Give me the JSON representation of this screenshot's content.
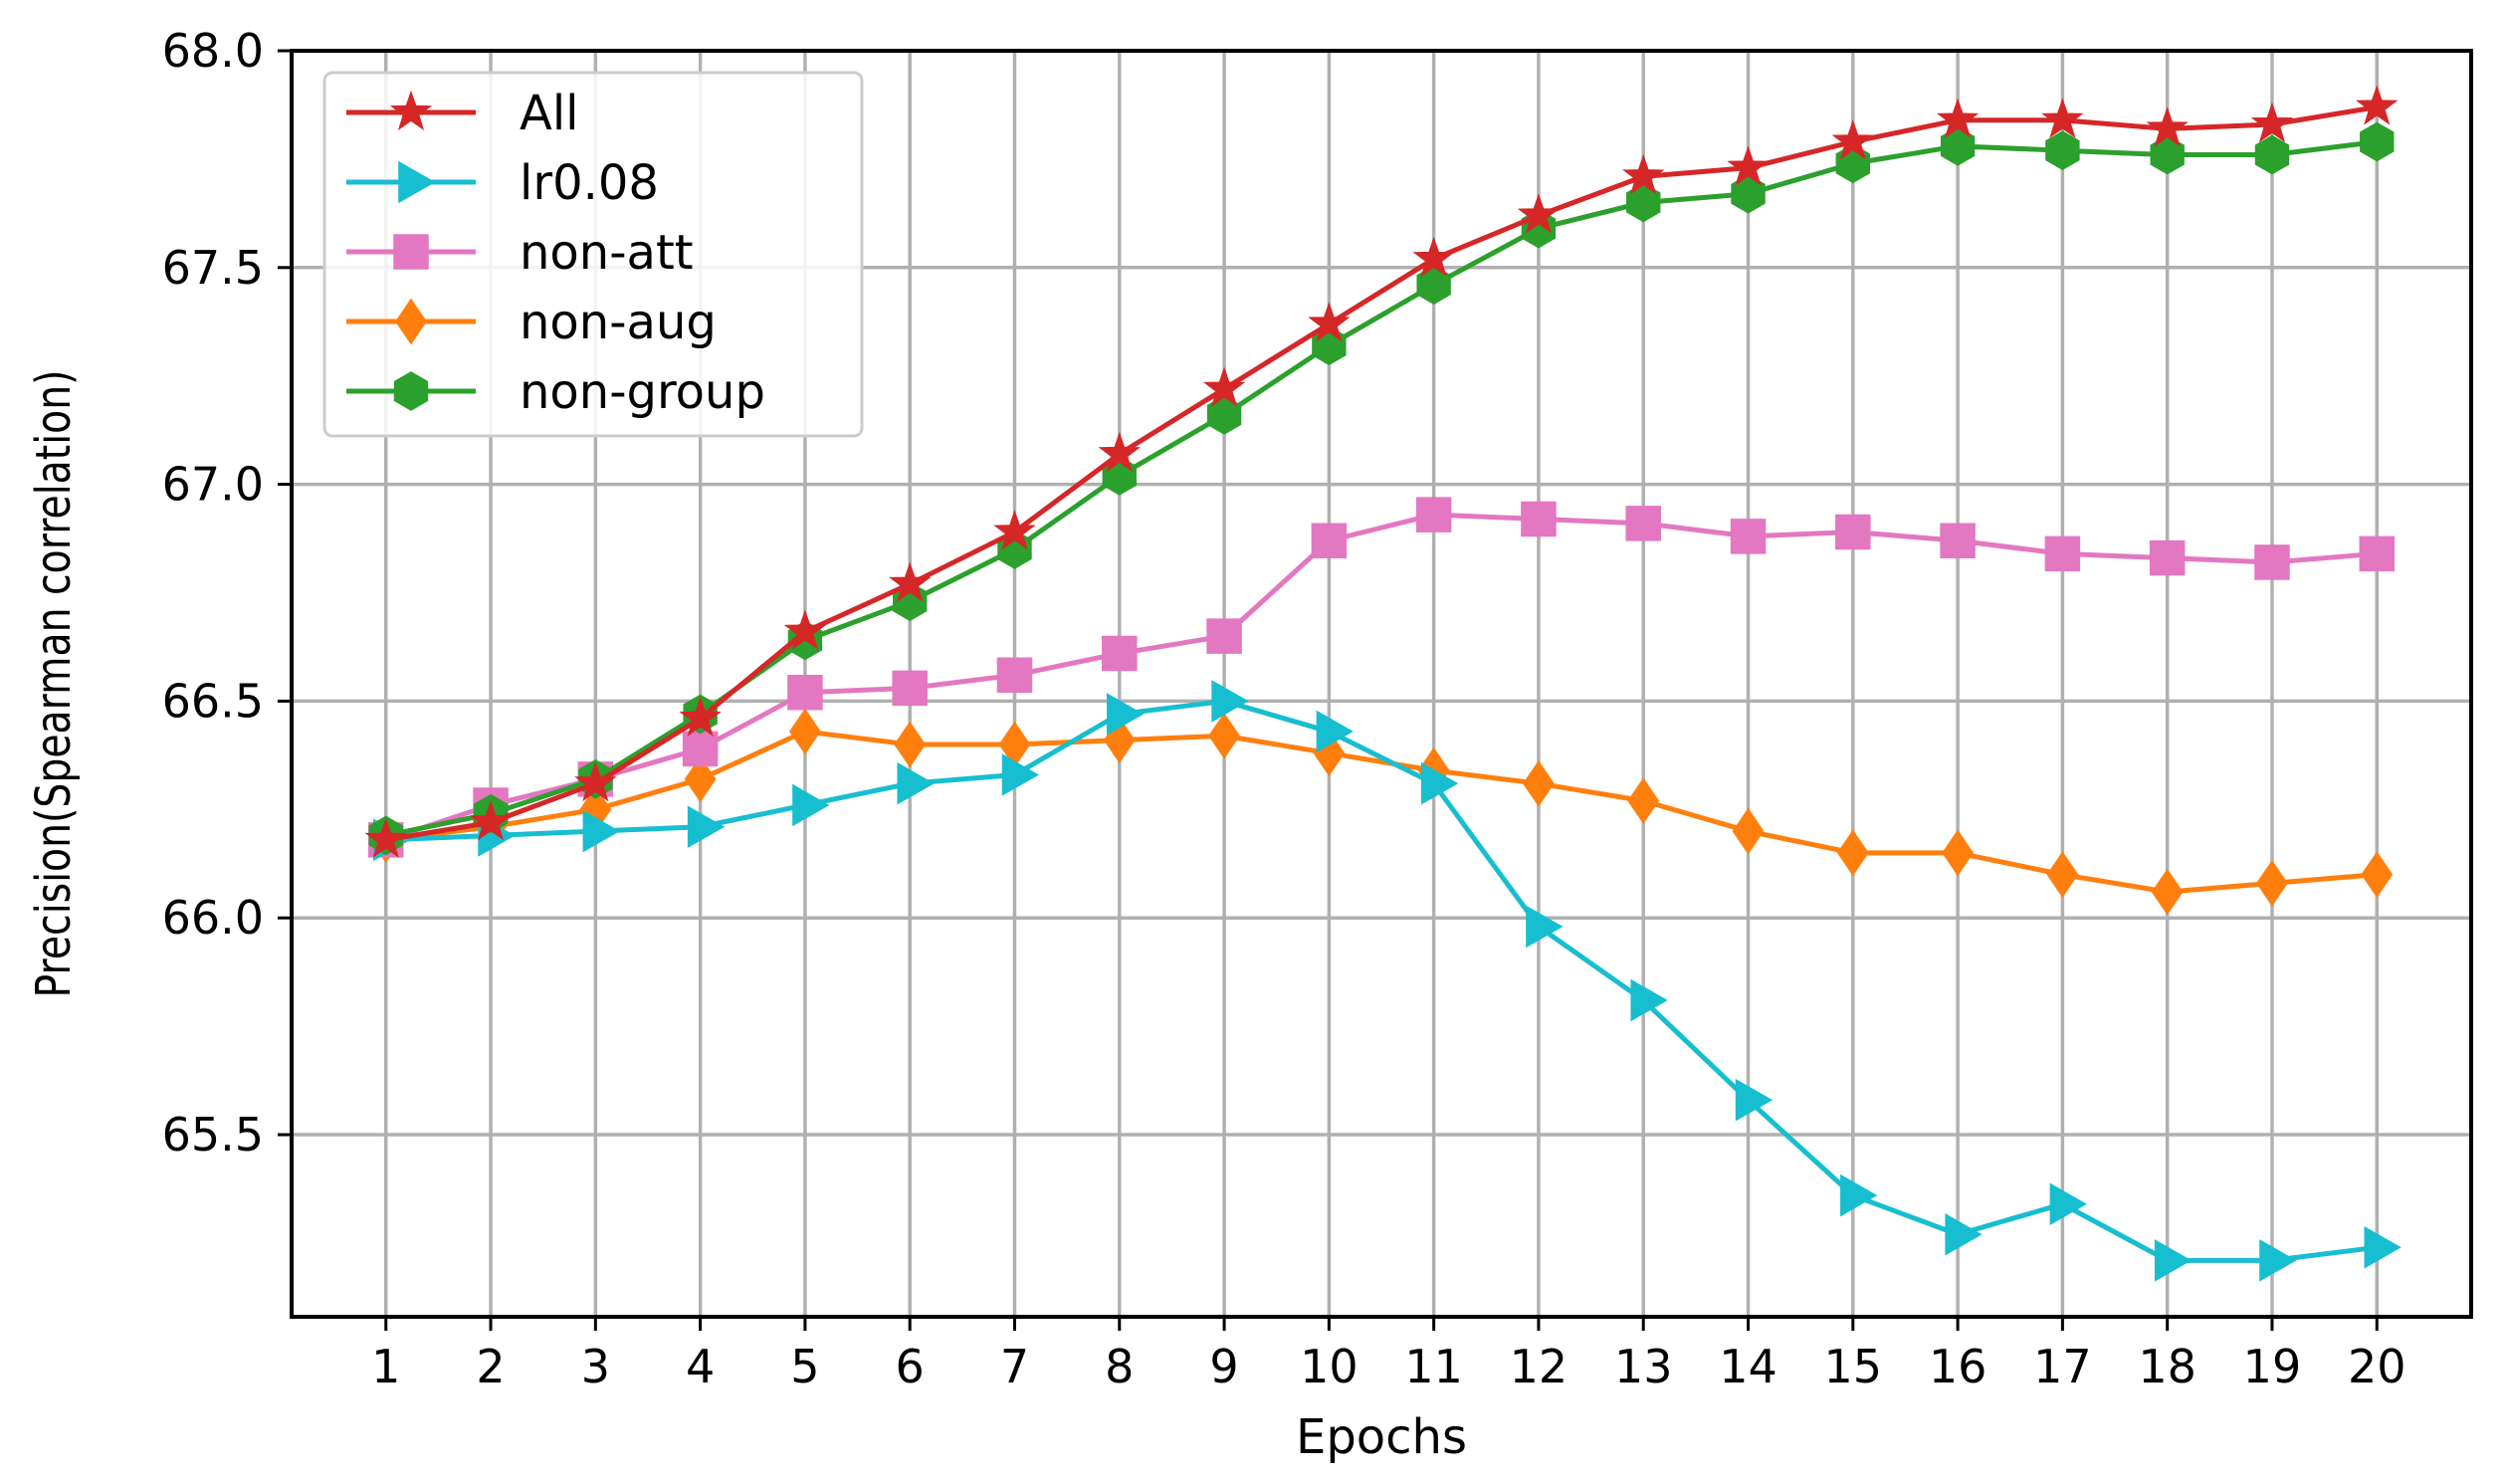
{
  "chart_data": {
    "type": "line",
    "xlabel": "Epochs",
    "ylabel": "Precision(Spearman correlation)",
    "x": [
      1,
      2,
      3,
      4,
      5,
      6,
      7,
      8,
      9,
      10,
      11,
      12,
      13,
      14,
      15,
      16,
      17,
      18,
      19,
      20
    ],
    "xticks": [
      "1",
      "2",
      "3",
      "4",
      "5",
      "6",
      "7",
      "8",
      "9",
      "10",
      "11",
      "12",
      "13",
      "14",
      "15",
      "16",
      "17",
      "18",
      "19",
      "20"
    ],
    "ylim": [
      65.08,
      68.0
    ],
    "yticks": [
      "65.5",
      "66.0",
      "66.5",
      "67.0",
      "67.5",
      "68.0"
    ],
    "ytick_values": [
      65.5,
      66.0,
      66.5,
      67.0,
      67.5,
      68.0
    ],
    "grid": true,
    "legend_position": "top-left",
    "series": [
      {
        "name": "All",
        "color": "#d62728",
        "marker": "star",
        "values": [
          66.18,
          66.22,
          66.31,
          66.46,
          66.66,
          66.77,
          66.89,
          67.07,
          67.22,
          67.37,
          67.52,
          67.62,
          67.71,
          67.73,
          67.79,
          67.84,
          67.84,
          67.82,
          67.83,
          67.87
        ]
      },
      {
        "name": "lr0.08",
        "color": "#17becf",
        "marker": "triangle-right",
        "values": [
          66.18,
          66.19,
          66.2,
          66.21,
          66.26,
          66.31,
          66.33,
          66.47,
          66.5,
          66.43,
          66.31,
          65.98,
          65.81,
          65.58,
          65.36,
          65.27,
          65.34,
          65.21,
          65.21,
          65.24
        ]
      },
      {
        "name": "non-att",
        "color": "#e377c2",
        "marker": "square",
        "values": [
          66.18,
          66.26,
          66.32,
          66.39,
          66.52,
          66.53,
          66.56,
          66.61,
          66.65,
          66.87,
          66.93,
          66.92,
          66.91,
          66.88,
          66.89,
          66.87,
          66.84,
          66.83,
          66.82,
          66.84
        ]
      },
      {
        "name": "non-aug",
        "color": "#ff7f0e",
        "marker": "diamond",
        "values": [
          66.18,
          66.21,
          66.25,
          66.32,
          66.43,
          66.4,
          66.4,
          66.41,
          66.42,
          66.38,
          66.34,
          66.31,
          66.27,
          66.2,
          66.15,
          66.15,
          66.1,
          66.06,
          66.08,
          66.1
        ]
      },
      {
        "name": "non-group",
        "color": "#2ca02c",
        "marker": "hexagon",
        "values": [
          66.19,
          66.24,
          66.32,
          66.47,
          66.64,
          66.73,
          66.85,
          67.02,
          67.16,
          67.32,
          67.46,
          67.59,
          67.65,
          67.67,
          67.74,
          67.78,
          67.77,
          67.76,
          67.76,
          67.79
        ]
      }
    ]
  }
}
